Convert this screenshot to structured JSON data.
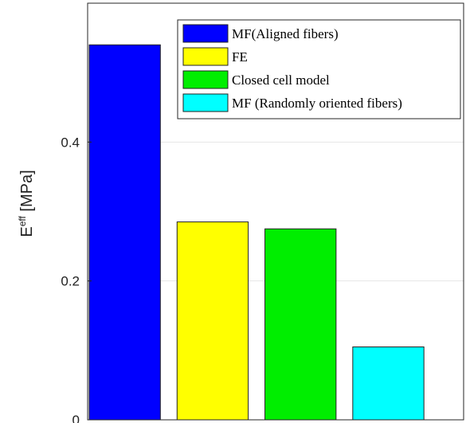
{
  "chart_data": {
    "type": "bar",
    "categories": [
      "MF(Aligned fibers)",
      "FE",
      "Closed cell model",
      "MF (Randomly oriented fibers)"
    ],
    "values": [
      0.54,
      0.285,
      0.275,
      0.105
    ],
    "colors": [
      "#0000ff",
      "#ffff00",
      "#00ee00",
      "#00ffff"
    ],
    "ylabel": {
      "base": "E",
      "sup": "eff",
      "unit": " [MPa]"
    },
    "ylim": [
      0,
      0.6
    ],
    "yticks": [
      0,
      0.2,
      0.4
    ],
    "ytick_labels": [
      "0",
      "0.2",
      "0.4"
    ],
    "grid": true,
    "legend": {
      "placement": "top-right",
      "entries": [
        "MF(Aligned fibers)",
        "FE",
        "Closed cell model",
        "MF (Randomly oriented fibers)"
      ]
    }
  }
}
